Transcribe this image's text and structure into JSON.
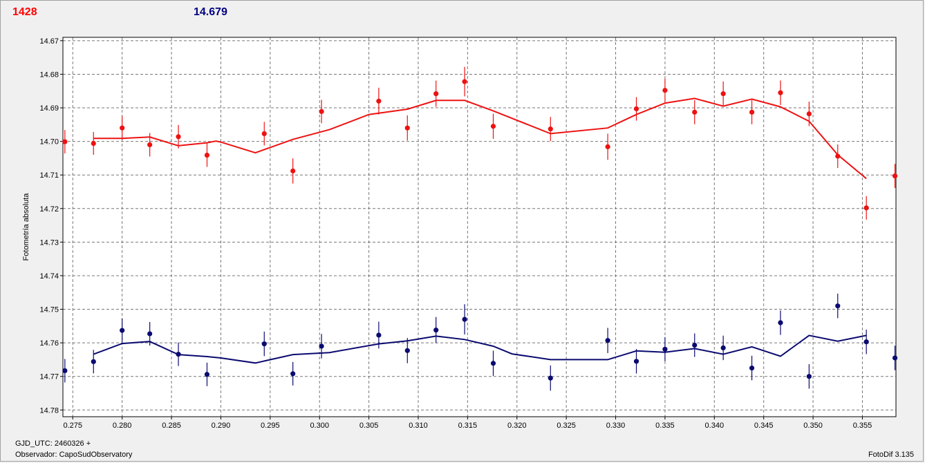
{
  "header": {
    "left_value": "1428",
    "right_value": "14.679"
  },
  "footer": {
    "gjd": "GJD_UTC: 2460326 +",
    "observer": "Observador: CapoSudObservatory",
    "version": "FotoDif 3.135"
  },
  "colors": {
    "series1": "#ee1111",
    "series2": "#0a0a70",
    "grid": "#777777",
    "plot_bg": "#ffffff"
  },
  "chart_data": {
    "type": "scatter",
    "ylabel": "Fotometría absoluta",
    "xlabel": "",
    "xlim": [
      0.274,
      0.3584
    ],
    "ylim": [
      14.782,
      14.669
    ],
    "y_inverted": true,
    "grid": true,
    "xticks": [
      0.275,
      0.28,
      0.285,
      0.29,
      0.295,
      0.3,
      0.305,
      0.31,
      0.315,
      0.32,
      0.325,
      0.33,
      0.335,
      0.34,
      0.345,
      0.35,
      0.355
    ],
    "xtick_labels": [
      "0.275",
      "0.280",
      "0.285",
      "0.290",
      "0.295",
      "0.300",
      "0.305",
      "0.310",
      "0.315",
      "0.320",
      "0.325",
      "0.330",
      "0.335",
      "0.340",
      "0.345",
      "0.350",
      "0.355"
    ],
    "yticks": [
      14.67,
      14.68,
      14.69,
      14.7,
      14.71,
      14.72,
      14.73,
      14.74,
      14.75,
      14.76,
      14.77,
      14.78
    ],
    "ytick_labels": [
      "14.67",
      "14.68",
      "14.69",
      "14.70",
      "14.71",
      "14.72",
      "14.73",
      "14.74",
      "14.75",
      "14.76",
      "14.77",
      "14.78"
    ],
    "series": [
      {
        "points": [
          {
            "x": 0.2742,
            "y": 14.7001,
            "err": 0.007
          },
          {
            "x": 0.2771,
            "y": 14.7006,
            "err": 0.0068
          },
          {
            "x": 0.28,
            "y": 14.696,
            "err": 0.007
          },
          {
            "x": 0.2828,
            "y": 14.701,
            "err": 0.007
          },
          {
            "x": 0.2857,
            "y": 14.6986,
            "err": 0.007
          },
          {
            "x": 0.2886,
            "y": 14.7041,
            "err": 0.007
          },
          {
            "x": 0.2944,
            "y": 14.6977,
            "err": 0.007
          },
          {
            "x": 0.2973,
            "y": 14.7088,
            "err": 0.0075
          },
          {
            "x": 0.3002,
            "y": 14.6911,
            "err": 0.007
          },
          {
            "x": 0.306,
            "y": 14.688,
            "err": 0.008
          },
          {
            "x": 0.3089,
            "y": 14.696,
            "err": 0.0075
          },
          {
            "x": 0.3118,
            "y": 14.6858,
            "err": 0.0078
          },
          {
            "x": 0.3147,
            "y": 14.6822,
            "err": 0.0088
          },
          {
            "x": 0.3176,
            "y": 14.6955,
            "err": 0.0075
          },
          {
            "x": 0.3234,
            "y": 14.6963,
            "err": 0.0072
          },
          {
            "x": 0.3292,
            "y": 14.7016,
            "err": 0.0078
          },
          {
            "x": 0.3321,
            "y": 14.6903,
            "err": 0.007
          },
          {
            "x": 0.335,
            "y": 14.6848,
            "err": 0.007
          },
          {
            "x": 0.338,
            "y": 14.6913,
            "err": 0.0072
          },
          {
            "x": 0.3409,
            "y": 14.6858,
            "err": 0.0073
          },
          {
            "x": 0.3438,
            "y": 14.6913,
            "err": 0.0072
          },
          {
            "x": 0.3467,
            "y": 14.6855,
            "err": 0.0073
          },
          {
            "x": 0.3496,
            "y": 14.6918,
            "err": 0.0073
          },
          {
            "x": 0.3525,
            "y": 14.7044,
            "err": 0.007
          },
          {
            "x": 0.3554,
            "y": 14.7198,
            "err": 0.007
          },
          {
            "x": 0.3583,
            "y": 14.7103,
            "err": 0.0072
          }
        ],
        "fit": [
          [
            0.2771,
            14.6991
          ],
          [
            0.28,
            14.6991
          ],
          [
            0.2828,
            14.6987
          ],
          [
            0.2857,
            14.7013
          ],
          [
            0.2886,
            14.7004
          ],
          [
            0.2895,
            14.6999
          ],
          [
            0.29,
            14.7002
          ],
          [
            0.2935,
            14.7034
          ],
          [
            0.2973,
            14.6994
          ],
          [
            0.301,
            14.6965
          ],
          [
            0.305,
            14.692
          ],
          [
            0.3089,
            14.6904
          ],
          [
            0.3118,
            14.6878
          ],
          [
            0.3147,
            14.6878
          ],
          [
            0.3176,
            14.6909
          ],
          [
            0.3234,
            14.6977
          ],
          [
            0.3292,
            14.696
          ],
          [
            0.3321,
            14.692
          ],
          [
            0.335,
            14.6886
          ],
          [
            0.338,
            14.6872
          ],
          [
            0.3409,
            14.6895
          ],
          [
            0.3438,
            14.6874
          ],
          [
            0.3467,
            14.6897
          ],
          [
            0.3496,
            14.694
          ],
          [
            0.3525,
            14.704
          ],
          [
            0.3554,
            14.7111
          ]
        ]
      },
      {
        "points": [
          {
            "x": 0.2742,
            "y": 14.7683,
            "err": 0.007
          },
          {
            "x": 0.2771,
            "y": 14.7656,
            "err": 0.007
          },
          {
            "x": 0.28,
            "y": 14.7563,
            "err": 0.007
          },
          {
            "x": 0.2828,
            "y": 14.7573,
            "err": 0.007
          },
          {
            "x": 0.2857,
            "y": 14.7634,
            "err": 0.007
          },
          {
            "x": 0.2886,
            "y": 14.7694,
            "err": 0.007
          },
          {
            "x": 0.2944,
            "y": 14.7603,
            "err": 0.0073
          },
          {
            "x": 0.2973,
            "y": 14.7692,
            "err": 0.007
          },
          {
            "x": 0.3002,
            "y": 14.761,
            "err": 0.0073
          },
          {
            "x": 0.306,
            "y": 14.7577,
            "err": 0.008
          },
          {
            "x": 0.3089,
            "y": 14.7623,
            "err": 0.0075
          },
          {
            "x": 0.3118,
            "y": 14.7562,
            "err": 0.0078
          },
          {
            "x": 0.3147,
            "y": 14.753,
            "err": 0.009
          },
          {
            "x": 0.3176,
            "y": 14.7661,
            "err": 0.0075
          },
          {
            "x": 0.3234,
            "y": 14.7705,
            "err": 0.0075
          },
          {
            "x": 0.3292,
            "y": 14.7593,
            "err": 0.0075
          },
          {
            "x": 0.3321,
            "y": 14.7655,
            "err": 0.0073
          },
          {
            "x": 0.335,
            "y": 14.7619,
            "err": 0.0072
          },
          {
            "x": 0.338,
            "y": 14.7607,
            "err": 0.007
          },
          {
            "x": 0.3409,
            "y": 14.7615,
            "err": 0.0073
          },
          {
            "x": 0.3438,
            "y": 14.7675,
            "err": 0.0073
          },
          {
            "x": 0.3467,
            "y": 14.754,
            "err": 0.0073
          },
          {
            "x": 0.3496,
            "y": 14.77,
            "err": 0.0073
          },
          {
            "x": 0.3525,
            "y": 14.749,
            "err": 0.0073
          },
          {
            "x": 0.3554,
            "y": 14.7597,
            "err": 0.0073
          },
          {
            "x": 0.3583,
            "y": 14.7645,
            "err": 0.0073
          }
        ],
        "fit": [
          [
            0.2771,
            14.7634
          ],
          [
            0.28,
            14.7602
          ],
          [
            0.2828,
            14.7596
          ],
          [
            0.2857,
            14.7635
          ],
          [
            0.2886,
            14.7641
          ],
          [
            0.29,
            14.7645
          ],
          [
            0.2935,
            14.766
          ],
          [
            0.2973,
            14.7635
          ],
          [
            0.301,
            14.7629
          ],
          [
            0.306,
            14.7603
          ],
          [
            0.3089,
            14.7594
          ],
          [
            0.3118,
            14.758
          ],
          [
            0.3147,
            14.759
          ],
          [
            0.3176,
            14.761
          ],
          [
            0.3195,
            14.7633
          ],
          [
            0.3234,
            14.765
          ],
          [
            0.3292,
            14.765
          ],
          [
            0.3321,
            14.7624
          ],
          [
            0.335,
            14.7628
          ],
          [
            0.338,
            14.7617
          ],
          [
            0.3409,
            14.7634
          ],
          [
            0.3438,
            14.7612
          ],
          [
            0.3467,
            14.764
          ],
          [
            0.3496,
            14.7578
          ],
          [
            0.3525,
            14.7595
          ],
          [
            0.3554,
            14.7578
          ]
        ]
      }
    ]
  }
}
